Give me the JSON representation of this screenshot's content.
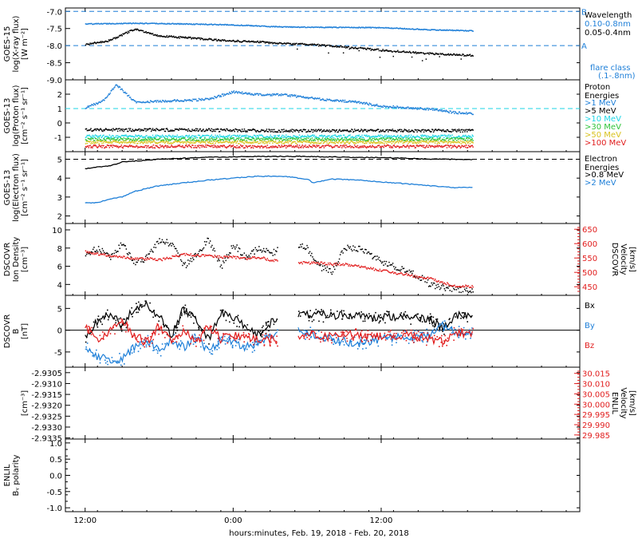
{
  "footer": {
    "xlabel": "hours:minutes, Feb. 19, 2018 - Feb. 20, 2018"
  },
  "time_ticks": [
    "12:00",
    "0:00",
    "12:00"
  ],
  "colors": {
    "black": "#000000",
    "blue": "#1e7fd8",
    "cyan": "#1ed6e6",
    "green": "#2fc43a",
    "yellow": "#d9c21e",
    "orange": "#e8832a",
    "red": "#e11d1d"
  },
  "chart_data": [
    {
      "id": "goes15-xray",
      "type": "scatter",
      "ylabel": [
        "GOES-15",
        "log(X-ray flux)",
        "[W m⁻²]"
      ],
      "ylim": [
        -9.0,
        -6.9
      ],
      "yticks": [
        "-7.0",
        "-7.5",
        "-8.0",
        "-8.5",
        "-9.0"
      ],
      "ytick_values": [
        -7.0,
        -7.5,
        -8.0,
        -8.5,
        -9.0
      ],
      "right_labels": [
        {
          "text": "Wavelength",
          "color": "#000000"
        },
        {
          "text": "0.10-0.8nm",
          "color": "#1e7fd8"
        },
        {
          "text": "0.05-0.4nm",
          "color": "#000000"
        },
        {
          "text": "flare class",
          "color": "#1e7fd8"
        },
        {
          "text": "(.1-.8nm)",
          "color": "#1e7fd8"
        }
      ],
      "thresholds": [
        {
          "y": -7.0,
          "label": "B",
          "color": "#1e7fd8"
        },
        {
          "y": -8.0,
          "label": "A",
          "color": "#1e7fd8"
        }
      ],
      "series": [
        {
          "color": "#1e7fd8",
          "x": [
            0,
            4,
            8,
            12,
            16,
            20,
            24,
            28,
            31.4
          ],
          "y": [
            -7.35,
            -7.33,
            -7.35,
            -7.38,
            -7.44,
            -7.45,
            -7.46,
            -7.52,
            -7.55
          ]
        },
        {
          "color": "#000000",
          "x": [
            0,
            2,
            4,
            6,
            8,
            10,
            12,
            14,
            16,
            18,
            20,
            22,
            24,
            26,
            28,
            30,
            31.4
          ],
          "y": [
            -7.95,
            -7.83,
            -7.5,
            -7.7,
            -7.75,
            -7.8,
            -7.85,
            -7.87,
            -7.93,
            -7.95,
            -8.0,
            -8.05,
            -8.12,
            -8.17,
            -8.22,
            -8.25,
            -8.27
          ]
        }
      ]
    },
    {
      "id": "goes13-proton",
      "type": "scatter",
      "ylabel": [
        "GOES-13",
        "log(Proton flux)",
        "[cm⁻² s⁻¹ sr⁻¹]"
      ],
      "ylim": [
        -2.0,
        3.0
      ],
      "yticks": [
        "2",
        "1",
        "0",
        "-1"
      ],
      "ytick_values": [
        2,
        1,
        0,
        -1
      ],
      "right_labels": [
        {
          "text": "Proton",
          "color": "#000000"
        },
        {
          "text": "Energies",
          "color": "#000000"
        },
        {
          "text": ">1 MeV",
          "color": "#1e7fd8"
        },
        {
          "text": ">5 MeV",
          "color": "#000000"
        },
        {
          "text": ">10 MeV",
          "color": "#1ed6e6"
        },
        {
          "text": ">30 MeV",
          "color": "#2fc43a"
        },
        {
          "text": ">50 MeV",
          "color": "#d9c21e"
        },
        {
          "text": ">100 MeV",
          "color": "#e11d1d"
        }
      ],
      "thresholds": [
        {
          "y": 1.0,
          "label": "",
          "color": "#1ed6e6"
        }
      ],
      "series": [
        {
          "color": "#1e7fd8",
          "x": [
            0,
            1.5,
            2.5,
            4,
            8,
            10,
            12,
            14,
            16,
            18,
            20,
            22,
            24,
            26,
            28,
            30,
            31.4
          ],
          "y": [
            1.1,
            1.6,
            2.7,
            1.5,
            1.6,
            1.7,
            2.2,
            2.0,
            2.0,
            1.8,
            1.6,
            1.5,
            1.2,
            1.1,
            1.0,
            0.75,
            0.7
          ]
        },
        {
          "color": "#000000",
          "x": [
            0,
            8,
            16,
            24,
            31.4
          ],
          "y": [
            -0.45,
            -0.45,
            -0.5,
            -0.5,
            -0.5
          ]
        },
        {
          "color": "#1ed6e6",
          "x": [
            0,
            8,
            16,
            24,
            31.4
          ],
          "y": [
            -0.9,
            -0.9,
            -0.9,
            -0.9,
            -0.9
          ]
        },
        {
          "color": "#2fc43a",
          "x": [
            0,
            8,
            16,
            24,
            31.4
          ],
          "y": [
            -1.1,
            -1.1,
            -1.1,
            -1.1,
            -1.1
          ]
        },
        {
          "color": "#d9c21e",
          "x": [
            0,
            8,
            16,
            24,
            31.4
          ],
          "y": [
            -1.3,
            -1.3,
            -1.3,
            -1.3,
            -1.3
          ]
        },
        {
          "color": "#e11d1d",
          "x": [
            0,
            8,
            16,
            24,
            31.4
          ],
          "y": [
            -1.6,
            -1.6,
            -1.6,
            -1.6,
            -1.6
          ]
        }
      ]
    },
    {
      "id": "goes13-electron",
      "type": "line",
      "ylabel": [
        "GOES-13",
        "log(Electron flux)",
        "[cm⁻² s⁻¹ sr⁻¹]"
      ],
      "ylim": [
        1.6,
        5.4
      ],
      "yticks": [
        "5",
        "4",
        "3",
        "2"
      ],
      "ytick_values": [
        5,
        4,
        3,
        2
      ],
      "right_labels": [
        {
          "text": "Electron",
          "color": "#000000"
        },
        {
          "text": "Energies",
          "color": "#000000"
        },
        {
          "text": ">0.8 MeV",
          "color": "#000000"
        },
        {
          "text": ">2 MeV",
          "color": "#1e7fd8"
        }
      ],
      "thresholds": [
        {
          "y": 5.0,
          "label": "",
          "color": "#000000"
        }
      ],
      "series": [
        {
          "color": "#000000",
          "x": [
            0,
            1,
            2,
            3,
            4,
            6,
            8,
            10,
            12,
            14,
            16,
            18,
            20,
            22,
            24,
            26,
            28,
            30,
            31.4
          ],
          "y": [
            4.5,
            4.6,
            4.65,
            4.85,
            4.9,
            5.0,
            5.05,
            5.1,
            5.12,
            5.15,
            5.15,
            5.15,
            5.12,
            5.1,
            5.08,
            5.05,
            5.0,
            5.0,
            4.98
          ]
        },
        {
          "color": "#1e7fd8",
          "x": [
            0,
            1,
            2,
            3,
            4,
            6,
            8,
            10,
            12,
            14,
            16,
            18,
            18.5,
            20,
            22,
            24,
            26,
            28,
            30,
            31.4
          ],
          "y": [
            2.7,
            2.7,
            2.9,
            3.0,
            3.3,
            3.6,
            3.75,
            3.9,
            4.0,
            4.1,
            4.1,
            3.95,
            3.75,
            3.95,
            3.9,
            3.8,
            3.7,
            3.6,
            3.5,
            3.5
          ]
        }
      ]
    },
    {
      "id": "dscovr-density",
      "type": "scatter",
      "ylabel": [
        "DSCOVR",
        "Ion Density",
        "[cm⁻³]"
      ],
      "ylim": [
        2.8,
        10.7
      ],
      "yticks": [
        "10",
        "8",
        "6",
        "4"
      ],
      "ytick_values": [
        10,
        8,
        6,
        4
      ],
      "ylabel_right": [
        "DSCOVR",
        "Velocity",
        "[km/s]"
      ],
      "ylim_right": [
        420,
        670
      ],
      "yticks_right": [
        "650",
        "600",
        "550",
        "500",
        "450"
      ],
      "ytick_values_right": [
        650,
        600,
        550,
        500,
        450
      ],
      "series": [
        {
          "color": "#000000",
          "axis": "left",
          "x": [
            0,
            1,
            2,
            3,
            4,
            5,
            6,
            7,
            8,
            9,
            10,
            11,
            12,
            13,
            14,
            15,
            16,
            17,
            18,
            19,
            20,
            21,
            22,
            23,
            24,
            25,
            26,
            27,
            28,
            29,
            30,
            31.4
          ],
          "y": [
            7.5,
            8,
            7,
            8.5,
            6.5,
            7,
            9,
            8.5,
            6,
            7.5,
            9,
            6,
            8.5,
            7,
            8,
            7.5,
            8,
            8.5,
            8,
            6,
            5.5,
            8.2,
            8,
            7.5,
            6.5,
            6,
            5.5,
            5,
            4,
            3.8,
            3.5,
            3.5
          ]
        },
        {
          "color": "#e11d1d",
          "axis": "right",
          "x": [
            0,
            1,
            2,
            3,
            4,
            5,
            6,
            7,
            8,
            9,
            10,
            11,
            12,
            13,
            14,
            15,
            16,
            17,
            18,
            19,
            20,
            21,
            22,
            23,
            24,
            25,
            26,
            27,
            28,
            29,
            30,
            31.4
          ],
          "y": [
            575,
            565,
            560,
            555,
            550,
            550,
            545,
            555,
            565,
            560,
            560,
            555,
            555,
            550,
            555,
            545,
            540,
            535,
            535,
            535,
            530,
            530,
            525,
            515,
            510,
            500,
            495,
            485,
            480,
            465,
            455,
            452
          ]
        }
      ]
    },
    {
      "id": "dscovr-b",
      "type": "line",
      "ylabel": [
        "DSCOVR",
        "B",
        "[nT]"
      ],
      "ylim": [
        -8.5,
        8.0
      ],
      "yticks": [
        "5",
        "0",
        "-5"
      ],
      "ytick_values": [
        5,
        0,
        -5
      ],
      "right_labels": [
        {
          "text": "Bx",
          "color": "#000000"
        },
        {
          "text": "By",
          "color": "#1e7fd8"
        },
        {
          "text": "Bz",
          "color": "#e11d1d"
        }
      ],
      "thresholds": [
        {
          "y": 0,
          "label": "",
          "color": "#000000",
          "solid": true
        }
      ],
      "series": [
        {
          "name": "Bx",
          "color": "#000000",
          "x": [
            0,
            1,
            2,
            3,
            4,
            5,
            6,
            7,
            8,
            9,
            10,
            11,
            12,
            13,
            14,
            16,
            18,
            20,
            22,
            24,
            26,
            28,
            29,
            30,
            31.4
          ],
          "y": [
            -2,
            2,
            4,
            1,
            5,
            6,
            3,
            -1,
            5,
            2,
            -2,
            4,
            3,
            1,
            -1,
            4,
            3.5,
            3.5,
            3.2,
            3.0,
            3.0,
            2.5,
            0.5,
            3.5,
            3.2
          ]
        },
        {
          "name": "By",
          "color": "#1e7fd8",
          "x": [
            0,
            1,
            2,
            3,
            4,
            5,
            6,
            7,
            8,
            9,
            10,
            11,
            12,
            13,
            14,
            16,
            18,
            20,
            22,
            24,
            26,
            28,
            29,
            30,
            31.4
          ],
          "y": [
            -4,
            -6,
            -7,
            -6.5,
            -4,
            -2,
            -5,
            -2,
            -4,
            -1,
            -5,
            -2,
            -3,
            -4,
            -3,
            0,
            -0.5,
            -2,
            -3,
            -2,
            -1.5,
            -1,
            1,
            -0.5,
            -0.3
          ]
        },
        {
          "name": "Bz",
          "color": "#e11d1d",
          "x": [
            0,
            1,
            2,
            3,
            4,
            5,
            6,
            7,
            8,
            9,
            10,
            11,
            12,
            13,
            14,
            16,
            18,
            20,
            22,
            24,
            26,
            28,
            29,
            30,
            31.4
          ],
          "y": [
            1,
            -2,
            0,
            2,
            -1,
            -3,
            1,
            -2,
            0,
            -3,
            1,
            -2,
            -1,
            -2,
            -2,
            -2,
            -1,
            -1.5,
            -1,
            -1.5,
            -1,
            -2,
            -2.5,
            -0.5,
            -0.8
          ]
        }
      ]
    },
    {
      "id": "enlil-density",
      "type": "line",
      "ylabel": [
        "",
        "",
        "[cm⁻³]"
      ],
      "ylim": [
        -2.93355,
        -2.93025
      ],
      "yticks": [
        "-2.9305",
        "-2.9310",
        "-2.9315",
        "-2.9320",
        "-2.9325",
        "-2.9330",
        "-2.9335"
      ],
      "ytick_values": [
        -2.9305,
        -2.931,
        -2.9315,
        -2.932,
        -2.9325,
        -2.933,
        -2.9335
      ],
      "ylabel_right": [
        "ENLIL",
        "Velocity",
        "[km/s]"
      ],
      "ylim_right": [
        29.983,
        30.018
      ],
      "yticks_right": [
        "30.015",
        "30.010",
        "30.005",
        "30.000",
        "29.995",
        "29.990",
        "29.985"
      ],
      "ytick_values_right": [
        30.015,
        30.01,
        30.005,
        30.0,
        29.995,
        29.99,
        29.985
      ],
      "series": []
    },
    {
      "id": "enlil-polarity",
      "type": "line",
      "ylabel": [
        "ENLIL",
        "Bᵧ polarity",
        ""
      ],
      "ylim": [
        -1.12,
        1.12
      ],
      "yticks": [
        "1.0",
        "0.5",
        "0.0",
        "-0.5",
        "-1.0"
      ],
      "ytick_values": [
        1.0,
        0.5,
        0.0,
        -0.5,
        -1.0
      ],
      "minor_ticks": [
        0.8,
        0.6,
        0.4,
        0.2,
        -0.2,
        -0.4,
        -0.6,
        -0.8
      ],
      "series": []
    }
  ]
}
